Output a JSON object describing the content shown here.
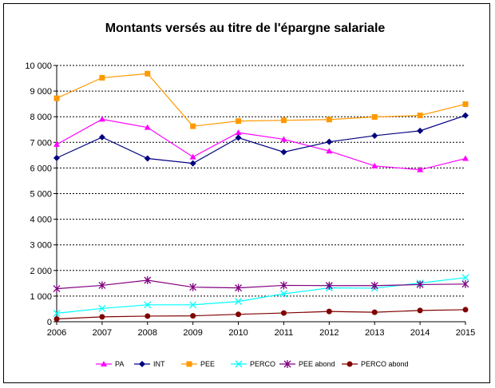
{
  "chart_data": {
    "type": "line",
    "title": "Montants versés au titre de l'épargne salariale",
    "xlabel": "",
    "ylabel": "",
    "x": [
      "2006",
      "2007",
      "2008",
      "2009",
      "2010",
      "2011",
      "2012",
      "2013",
      "2014",
      "2015"
    ],
    "ylim": [
      0,
      10000
    ],
    "yticks": [
      "0",
      "1 000",
      "2 000",
      "3 000",
      "4 000",
      "5 000",
      "6 000",
      "7 000",
      "8 000",
      "9 000",
      "10 000"
    ],
    "grid": "horizontal dashed",
    "legend_position": "bottom",
    "series": [
      {
        "name": "PA",
        "color": "#ff00ff",
        "marker": "triangle",
        "values": [
          6920,
          7900,
          7580,
          6430,
          7380,
          7120,
          6660,
          6080,
          5930,
          6370
        ]
      },
      {
        "name": "INT",
        "color": "#000080",
        "marker": "diamond",
        "values": [
          6390,
          7200,
          6370,
          6180,
          7180,
          6620,
          7020,
          7260,
          7450,
          8050
        ]
      },
      {
        "name": "PEE",
        "color": "#ff9900",
        "marker": "square",
        "values": [
          8720,
          9520,
          9680,
          7630,
          7830,
          7860,
          7890,
          7990,
          8050,
          8490
        ]
      },
      {
        "name": "PERCO",
        "color": "#00ffff",
        "marker": "x",
        "values": [
          330,
          520,
          660,
          660,
          790,
          1090,
          1320,
          1310,
          1510,
          1720
        ]
      },
      {
        "name": "PEE abond",
        "color": "#800080",
        "marker": "star",
        "values": [
          1290,
          1420,
          1620,
          1350,
          1320,
          1420,
          1410,
          1410,
          1450,
          1470
        ]
      },
      {
        "name": "PERCO abond",
        "color": "#800000",
        "marker": "circle",
        "values": [
          110,
          190,
          220,
          230,
          290,
          340,
          400,
          370,
          440,
          470
        ]
      }
    ]
  }
}
